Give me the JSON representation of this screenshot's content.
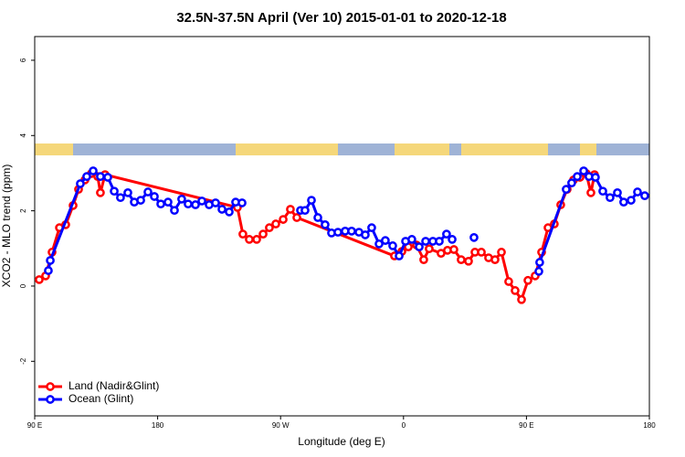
{
  "chart_data": {
    "type": "line",
    "title": "32.5N-37.5N April (Ver 10)   2015-01-01 to 2020-12-18",
    "x_label": "Longitude (deg E)",
    "y_label": "XCO2 - MLO trend (ppm)",
    "xlim": [
      90,
      540
    ],
    "ylim": [
      -3.45,
      6.63
    ],
    "xticks": [
      {
        "value": 90,
        "label": "90 E"
      },
      180,
      {
        "value": 270,
        "label": "90 W"
      },
      {
        "value": 360,
        "label": "0"
      },
      {
        "value": 450,
        "label": "90 E"
      },
      {
        "value": 540,
        "label": "180"
      }
    ],
    "yticks": [
      -2,
      0,
      2,
      4,
      6
    ],
    "legend": "bottom-left",
    "series": [
      {
        "name": "Land (Nadir&Glint)",
        "color": "#ff0000",
        "x": [
          93.3,
          98.0,
          102.7,
          108.1,
          112.7,
          118.1,
          122.1,
          126.8,
          131.5,
          136.1,
          138.1,
          141.5,
          238.4,
          242.4,
          247.1,
          252.5,
          257.2,
          261.8,
          266.5,
          271.9,
          277.2,
          281.9,
          353.4,
          358.8,
          363.5,
          369.5,
          374.8,
          378.8,
          387.5,
          392.2,
          396.9,
          402.2,
          407.6,
          412.3,
          417.0,
          422.3,
          427.0,
          431.7,
          437.0,
          441.7,
          446.4,
          451.1,
          456.4,
          461.1,
          465.8,
          470.4,
          475.1,
          479.8,
          484.5,
          489.2,
          493.8,
          497.2,
          499.8
        ],
        "values": [
          0.17,
          0.27,
          0.9,
          1.55,
          1.63,
          2.14,
          2.57,
          2.82,
          2.99,
          2.91,
          2.48,
          2.96,
          2.09,
          1.38,
          1.24,
          1.24,
          1.38,
          1.55,
          1.65,
          1.77,
          2.04,
          1.82,
          0.8,
          0.92,
          1.04,
          1.09,
          0.7,
          0.99,
          0.87,
          0.95,
          0.97,
          0.7,
          0.66,
          0.9,
          0.9,
          0.75,
          0.7,
          0.9,
          0.12,
          -0.12,
          -0.36,
          0.15,
          0.27,
          0.9,
          1.55,
          1.65,
          2.16,
          2.57,
          2.82,
          2.89,
          2.99,
          2.48,
          2.96
        ]
      },
      {
        "name": "Ocean (Glint)",
        "color": "#0000ff",
        "x": [
          100.0,
          101.4,
          123.4,
          128.1,
          132.8,
          138.1,
          143.5,
          148.2,
          152.8,
          158.2,
          162.9,
          167.6,
          172.9,
          177.6,
          182.3,
          187.6,
          192.3,
          197.6,
          202.3,
          207.7,
          212.4,
          217.7,
          222.4,
          227.1,
          232.4,
          237.1,
          241.8,
          null,
          284.6,
          287.9,
          292.6,
          297.3,
          302.6,
          307.3,
          312.0,
          317.3,
          322.0,
          327.4,
          332.0,
          336.7,
          342.1,
          346.7,
          352.1,
          356.8,
          361.5,
          366.1,
          371.5,
          376.2,
          381.5,
          386.2,
          391.5,
          395.6,
          null,
          411.6,
          null,
          459.1,
          459.7,
          479.1,
          483.1,
          487.2,
          491.9,
          495.8,
          500.5,
          505.9,
          511.2,
          516.6,
          521.2,
          526.6,
          531.3,
          536.6
        ],
        "values": [
          0.41,
          0.68,
          2.72,
          2.91,
          3.06,
          2.91,
          2.89,
          2.52,
          2.35,
          2.48,
          2.23,
          2.28,
          2.5,
          2.38,
          2.18,
          2.23,
          2.01,
          2.31,
          2.18,
          2.16,
          2.26,
          2.16,
          2.21,
          2.04,
          1.97,
          2.23,
          2.21,
          null,
          2.01,
          2.01,
          2.28,
          1.82,
          1.63,
          1.41,
          1.43,
          1.46,
          1.46,
          1.43,
          1.36,
          1.55,
          1.12,
          1.21,
          1.07,
          0.8,
          1.19,
          1.24,
          1.04,
          1.19,
          1.19,
          1.19,
          1.38,
          1.24,
          null,
          1.29,
          null,
          0.39,
          0.63,
          2.57,
          2.74,
          2.91,
          3.06,
          2.91,
          2.89,
          2.52,
          2.35,
          2.48,
          2.23,
          2.28,
          2.5,
          2.4
        ]
      }
    ]
  }
}
